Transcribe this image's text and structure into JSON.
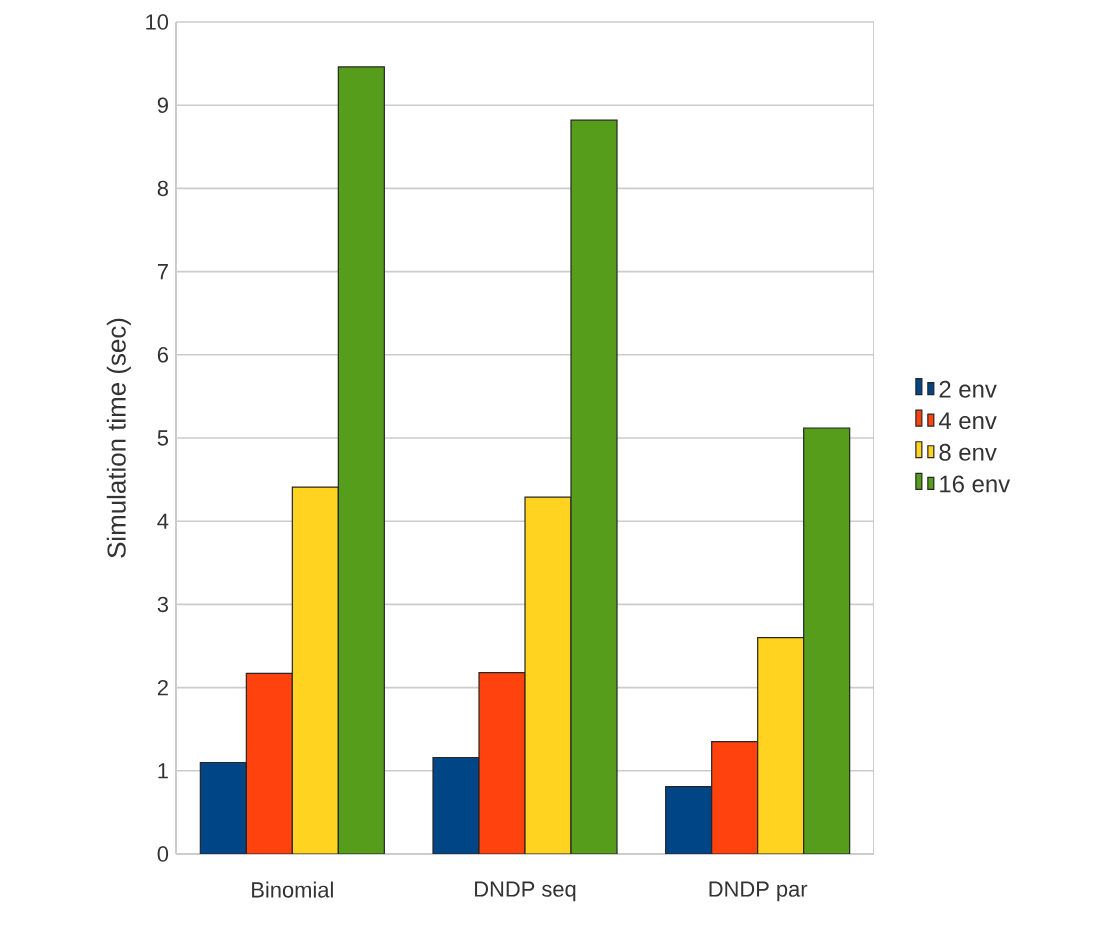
{
  "chart_data": {
    "type": "bar",
    "ylabel": "Simulation time (sec)",
    "categories": [
      "Binomial",
      "DNDP seq",
      "DNDP par"
    ],
    "series": [
      {
        "name": "2 env",
        "color": "#004586",
        "values": [
          1.1,
          1.16,
          0.81
        ]
      },
      {
        "name": "4 env",
        "color": "#ff420e",
        "values": [
          2.17,
          2.18,
          1.35
        ]
      },
      {
        "name": "8 env",
        "color": "#ffd320",
        "values": [
          4.41,
          4.29,
          2.6
        ]
      },
      {
        "name": "16 env",
        "color": "#579d1c",
        "values": [
          9.46,
          8.82,
          5.12
        ]
      }
    ],
    "ylim": [
      0,
      10
    ],
    "yticks": [
      0,
      1,
      2,
      3,
      4,
      5,
      6,
      7,
      8,
      9,
      10
    ],
    "grid": "y",
    "legend": "right"
  }
}
